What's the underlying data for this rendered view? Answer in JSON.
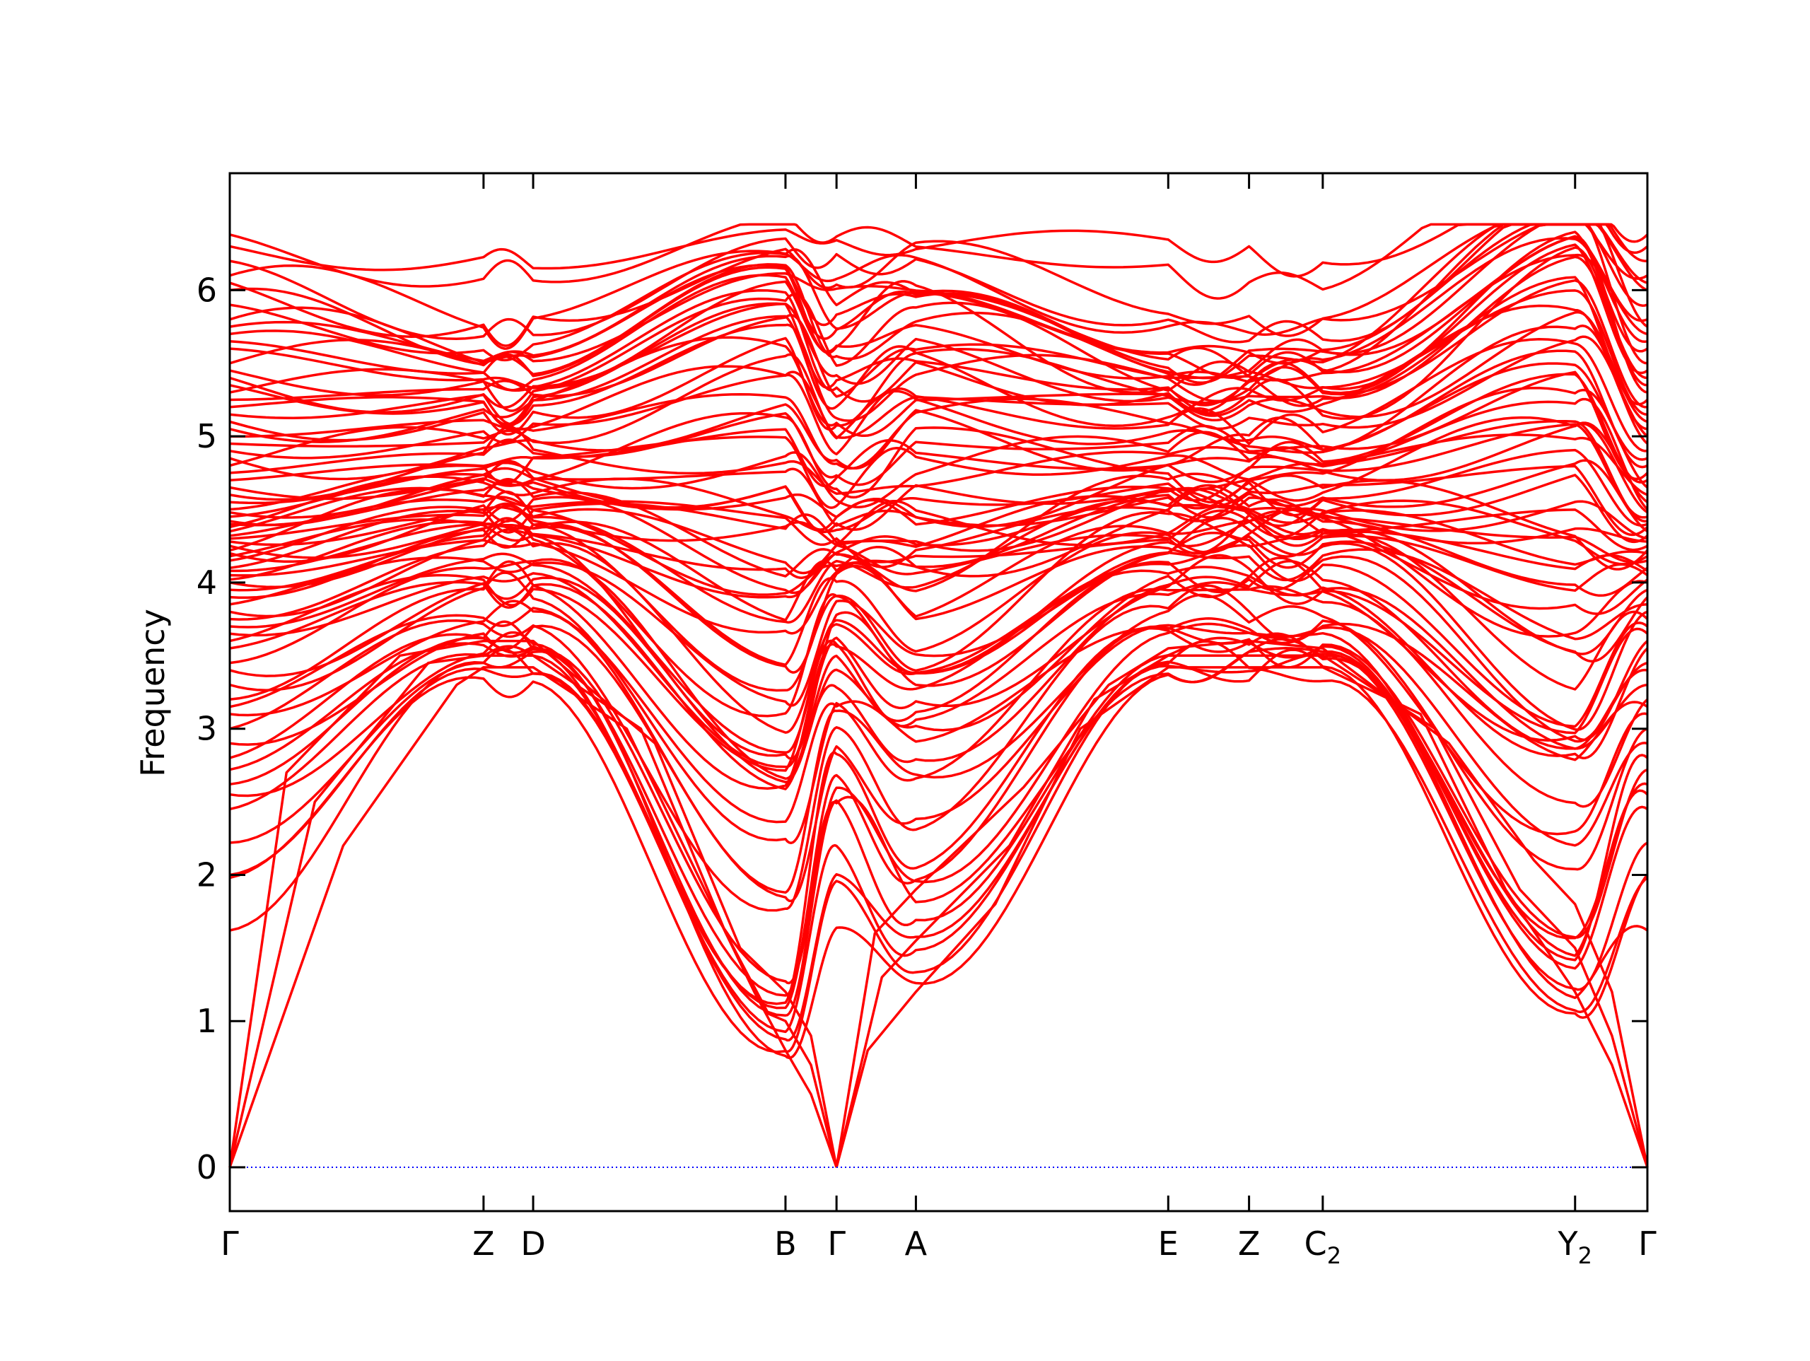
{
  "chart_data": {
    "type": "line",
    "title": "",
    "xlabel": "",
    "ylabel": "Frequency",
    "xlim": [
      0,
      1
    ],
    "ylim": [
      -0.3,
      6.8
    ],
    "grid": false,
    "legend": "none",
    "colors": {
      "bands": "#ff0000",
      "zero_line": "#0000ff",
      "axes": "#000000"
    },
    "y_ticks": [
      {
        "value": 0,
        "label": "0"
      },
      {
        "value": 1,
        "label": "1"
      },
      {
        "value": 2,
        "label": "2"
      },
      {
        "value": 3,
        "label": "3"
      },
      {
        "value": 4,
        "label": "4"
      },
      {
        "value": 5,
        "label": "5"
      },
      {
        "value": 6,
        "label": "6"
      }
    ],
    "x_ticks": [
      {
        "value": 0.0,
        "label": "Γ",
        "sub": ""
      },
      {
        "value": 0.179,
        "label": "Z",
        "sub": ""
      },
      {
        "value": 0.214,
        "label": "D",
        "sub": ""
      },
      {
        "value": 0.392,
        "label": "B",
        "sub": ""
      },
      {
        "value": 0.428,
        "label": "Γ",
        "sub": ""
      },
      {
        "value": 0.484,
        "label": "A",
        "sub": ""
      },
      {
        "value": 0.662,
        "label": "E",
        "sub": ""
      },
      {
        "value": 0.719,
        "label": "Z",
        "sub": ""
      },
      {
        "value": 0.771,
        "label": "C",
        "sub": "2"
      },
      {
        "value": 0.949,
        "label": "Y",
        "sub": "2"
      },
      {
        "value": 1.0,
        "label": "Γ",
        "sub": ""
      }
    ],
    "acoustic_branches": [
      {
        "x": [
          0,
          0.08,
          0.16,
          0.179,
          0.214,
          0.28,
          0.34,
          0.37,
          0.392,
          0.41,
          0.428
        ],
        "y": [
          0,
          2.2,
          3.3,
          3.42,
          3.42,
          3.0,
          1.8,
          1.2,
          0.8,
          0.5,
          0
        ]
      },
      {
        "x": [
          0,
          0.06,
          0.14,
          0.179,
          0.214,
          0.29,
          0.35,
          0.38,
          0.392,
          0.41,
          0.428
        ],
        "y": [
          0,
          2.5,
          3.45,
          3.5,
          3.5,
          3.0,
          1.6,
          1.05,
          1.0,
          0.7,
          0
        ]
      },
      {
        "x": [
          0,
          0.04,
          0.12,
          0.179,
          0.214,
          0.3,
          0.36,
          0.392,
          0.41,
          0.428
        ],
        "y": [
          0,
          2.7,
          3.5,
          3.6,
          3.6,
          2.9,
          1.5,
          1.2,
          0.9,
          0
        ]
      },
      {
        "x": [
          0.428,
          0.45,
          0.484,
          0.54,
          0.6,
          0.662,
          0.719,
          0.771,
          0.84,
          0.9,
          0.949,
          0.975,
          1.0
        ],
        "y": [
          0,
          0.8,
          1.2,
          1.8,
          3.0,
          3.42,
          3.42,
          3.42,
          3.1,
          1.9,
          1.2,
          0.7,
          0
        ]
      },
      {
        "x": [
          0.428,
          0.46,
          0.484,
          0.55,
          0.61,
          0.662,
          0.719,
          0.771,
          0.85,
          0.91,
          0.949,
          0.975,
          1.0
        ],
        "y": [
          0,
          1.3,
          1.55,
          2.2,
          3.2,
          3.5,
          3.5,
          3.5,
          3.0,
          1.9,
          1.5,
          0.9,
          0
        ]
      },
      {
        "x": [
          0.428,
          0.455,
          0.484,
          0.56,
          0.62,
          0.662,
          0.719,
          0.771,
          0.86,
          0.92,
          0.949,
          0.975,
          1.0
        ],
        "y": [
          0,
          1.6,
          1.9,
          2.6,
          3.3,
          3.55,
          3.6,
          3.55,
          2.9,
          2.1,
          1.8,
          1.2,
          0
        ]
      }
    ],
    "optical_bands": {
      "count": 78,
      "gamma_values": [
        1.62,
        1.98,
        2.0,
        2.22,
        2.45,
        2.55,
        2.62,
        2.72,
        2.8,
        2.9,
        3.0,
        3.1,
        3.15,
        3.2,
        3.3,
        3.4,
        3.45,
        3.55,
        3.6,
        3.65,
        3.7,
        3.75,
        3.8,
        3.85,
        3.9,
        3.95,
        4.0,
        4.02,
        4.05,
        4.08,
        4.1,
        4.15,
        4.18,
        4.2,
        4.22,
        4.25,
        4.28,
        4.3,
        4.32,
        4.35,
        4.38,
        4.4,
        4.42,
        4.45,
        4.48,
        4.5,
        4.55,
        4.6,
        4.65,
        4.7,
        4.75,
        4.8,
        4.85,
        4.9,
        4.95,
        5.0,
        5.05,
        5.1,
        5.15,
        5.2,
        5.25,
        5.3,
        5.35,
        5.4,
        5.45,
        5.5,
        5.6,
        5.65,
        5.7,
        5.75,
        5.8,
        5.9,
        6.0,
        6.05,
        6.1,
        6.2,
        6.3,
        6.38
      ],
      "z_values": [
        3.42,
        3.5,
        3.6,
        3.7,
        3.8,
        3.9,
        4.0,
        4.1,
        4.2,
        4.3,
        4.35,
        4.4,
        4.45,
        4.5,
        4.55,
        4.6,
        4.65,
        4.7,
        4.8,
        4.9,
        5.0,
        5.1,
        5.2,
        5.3,
        5.35,
        5.4,
        5.45,
        5.5,
        5.75,
        6.15
      ],
      "b_values": [
        0.8,
        1.0,
        1.2,
        1.8,
        2.3,
        2.6,
        2.7,
        2.9,
        3.2,
        3.5,
        3.7,
        3.9,
        4.1,
        4.3,
        4.5,
        4.7,
        4.9,
        5.1,
        5.3,
        5.5,
        5.7,
        5.9,
        6.0,
        6.1,
        6.15,
        6.2,
        6.3,
        6.45
      ]
    }
  }
}
